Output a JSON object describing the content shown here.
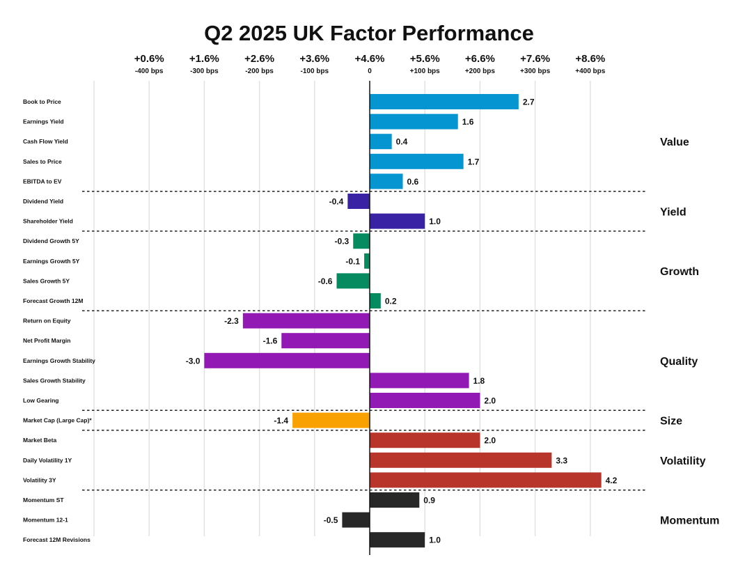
{
  "chart_data": {
    "type": "bar",
    "orientation": "horizontal",
    "title": "Q2 2025 UK Factor Performance",
    "xlabel": "",
    "ylabel": "",
    "xlim": [
      -5,
      4.3
    ],
    "grid": true,
    "x_ticks": [
      {
        "value": -5,
        "pct": "",
        "bps": ""
      },
      {
        "value": -4,
        "pct": "+0.6%",
        "bps": "-400 bps"
      },
      {
        "value": -3,
        "pct": "+1.6%",
        "bps": "-300 bps"
      },
      {
        "value": -2,
        "pct": "+2.6%",
        "bps": "-200 bps"
      },
      {
        "value": -1,
        "pct": "+3.6%",
        "bps": "-100 bps"
      },
      {
        "value": 0,
        "pct": "+4.6%",
        "bps": "0"
      },
      {
        "value": 1,
        "pct": "+5.6%",
        "bps": "+100 bps"
      },
      {
        "value": 2,
        "pct": "+6.6%",
        "bps": "+200 bps"
      },
      {
        "value": 3,
        "pct": "+7.6%",
        "bps": "+300 bps"
      },
      {
        "value": 4,
        "pct": "+8.6%",
        "bps": "+400 bps"
      }
    ],
    "groups": [
      {
        "name": "Value",
        "color": "#0596D1",
        "factors": [
          {
            "label": "Book to Price",
            "value": 2.7,
            "text": "2.7"
          },
          {
            "label": "Earnings Yield",
            "value": 1.6,
            "text": "1.6"
          },
          {
            "label": "Cash Flow Yield",
            "value": 0.4,
            "text": "0.4"
          },
          {
            "label": "Sales to Price",
            "value": 1.7,
            "text": "1.7"
          },
          {
            "label": "EBITDA to EV",
            "value": 0.6,
            "text": "0.6"
          }
        ]
      },
      {
        "name": "Yield",
        "color": "#3A22A4",
        "factors": [
          {
            "label": "Dividend Yield",
            "value": -0.4,
            "text": "-0.4"
          },
          {
            "label": "Shareholder Yield",
            "value": 1.0,
            "text": "1.0"
          }
        ]
      },
      {
        "name": "Growth",
        "color": "#068A5F",
        "factors": [
          {
            "label": "Dividend Growth 5Y",
            "value": -0.3,
            "text": "-0.3"
          },
          {
            "label": "Earnings Growth 5Y",
            "value": -0.1,
            "text": "-0.1"
          },
          {
            "label": "Sales Growth 5Y",
            "value": -0.6,
            "text": "-0.6"
          },
          {
            "label": "Forecast Growth 12M",
            "value": 0.2,
            "text": "0.2"
          }
        ]
      },
      {
        "name": "Quality",
        "color": "#9219B4",
        "factors": [
          {
            "label": "Return on Equity",
            "value": -2.3,
            "text": "-2.3"
          },
          {
            "label": "Net Profit Margin",
            "value": -1.6,
            "text": "-1.6"
          },
          {
            "label": "Earnings Growth Stability",
            "value": -3.0,
            "text": "-3.0"
          },
          {
            "label": "Sales Growth Stability",
            "value": 1.8,
            "text": "1.8"
          },
          {
            "label": "Low Gearing",
            "value": 2.0,
            "text": "2.0"
          }
        ]
      },
      {
        "name": "Size",
        "color": "#F9A100",
        "factors": [
          {
            "label": "Market Cap (Large Cap)*",
            "value": -1.4,
            "text": "-1.4"
          }
        ]
      },
      {
        "name": "Volatility",
        "color": "#B8352B",
        "factors": [
          {
            "label": "Market Beta",
            "value": 2.0,
            "text": "2.0"
          },
          {
            "label": "Daily Volatility 1Y",
            "value": 3.3,
            "text": "3.3"
          },
          {
            "label": "Volatility 3Y",
            "value": 4.2,
            "text": "4.2"
          }
        ]
      },
      {
        "name": "Momentum",
        "color": "#282828",
        "factors": [
          {
            "label": "Momentum ST",
            "value": 0.9,
            "text": "0.9"
          },
          {
            "label": "Momentum 12-1",
            "value": -0.5,
            "text": "-0.5"
          },
          {
            "label": "Forecast 12M Revisions",
            "value": 1.0,
            "text": "1.0"
          }
        ]
      }
    ]
  }
}
